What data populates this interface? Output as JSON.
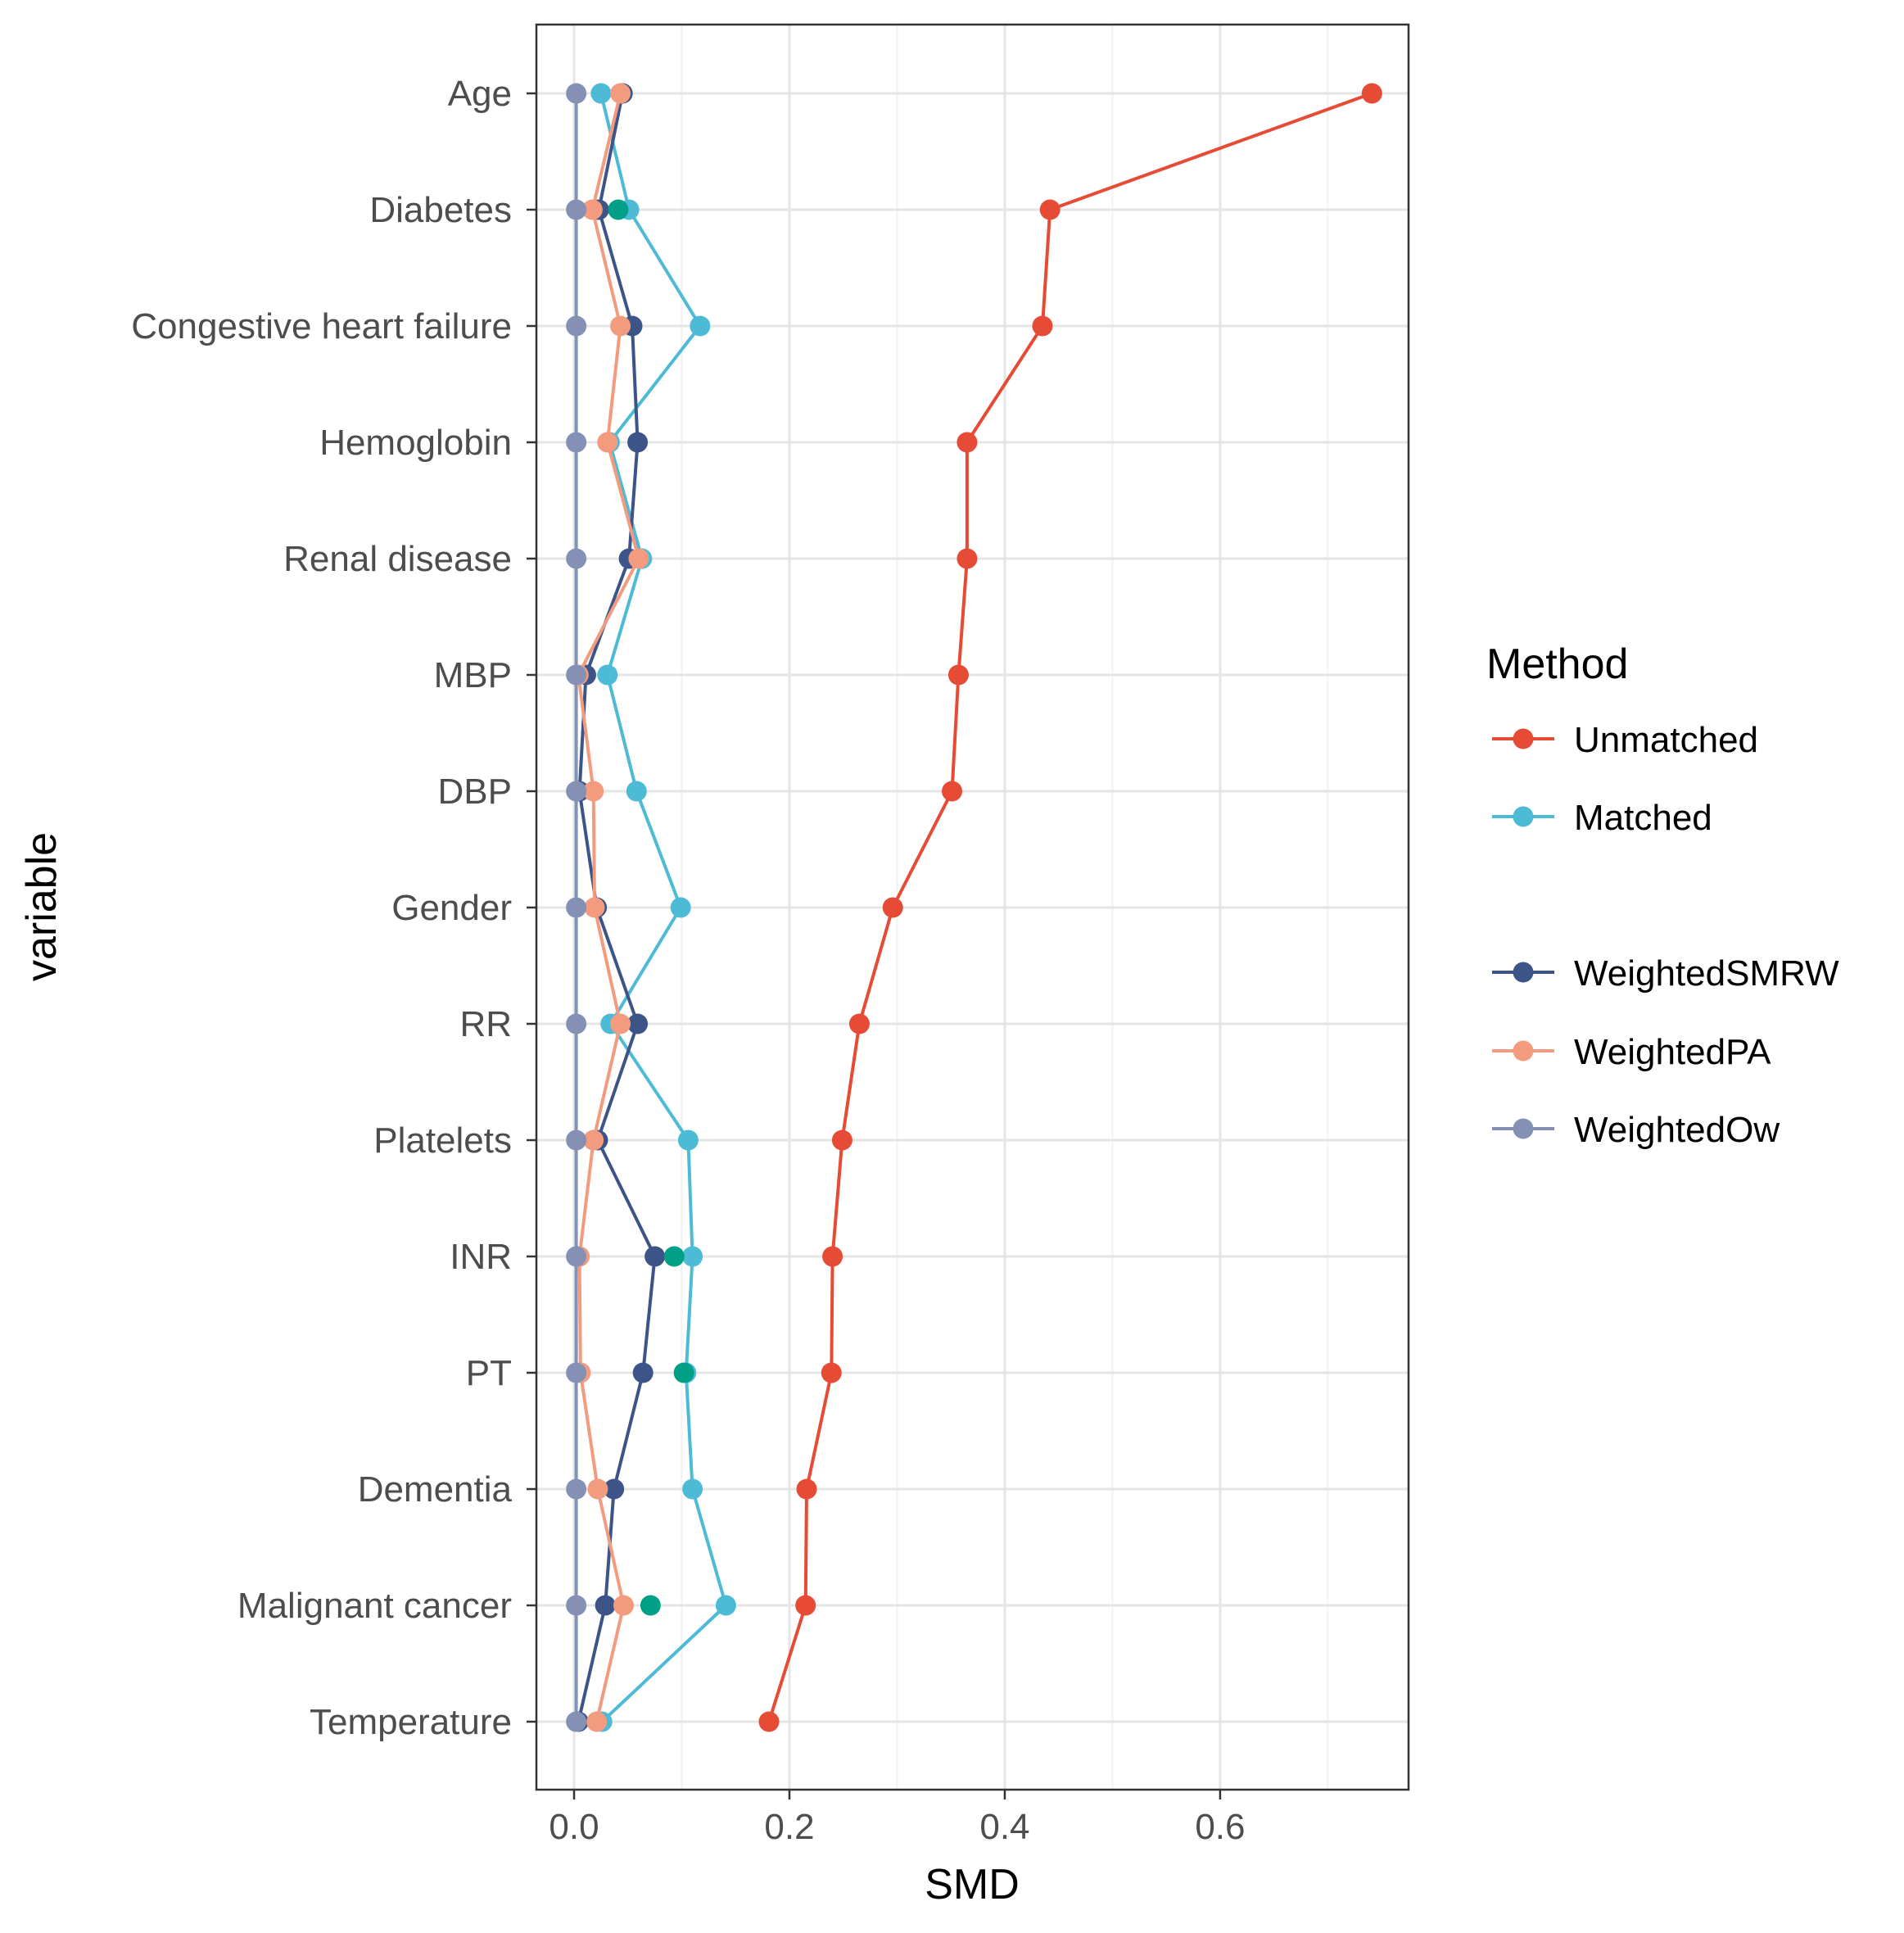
{
  "chart_data": {
    "type": "line",
    "orientation": "horizontal",
    "xlabel": "SMD",
    "ylabel": "variable",
    "xlim": [
      -0.035,
      0.775
    ],
    "xticks": [
      0.0,
      0.2,
      0.4,
      0.6
    ],
    "xtick_labels": [
      "0.0",
      "0.2",
      "0.4",
      "0.6"
    ],
    "grid": true,
    "categories": [
      "Age",
      "Diabetes",
      "Congestive heart failure",
      "Hemoglobin",
      "Renal disease ",
      "MBP",
      "DBP",
      "Gender",
      "RR",
      "Platelets",
      "INR",
      "PT",
      "Dementia",
      "Malignant cancer",
      "Temperature"
    ],
    "legend": {
      "title": "Method",
      "position": "right",
      "groups": [
        [
          "Unmatched",
          "Matched"
        ],
        [
          "WeightedSMRW",
          "WeightedPA",
          "WeightedOw"
        ]
      ]
    },
    "series": [
      {
        "name": "Unmatched",
        "color": "#E64B35",
        "values": [
          0.741,
          0.442,
          0.435,
          0.365,
          0.365,
          0.357,
          0.351,
          0.296,
          0.265,
          0.249,
          0.24,
          0.239,
          0.216,
          0.215,
          0.181
        ]
      },
      {
        "name": "Matched",
        "color": "#4DBBD5",
        "values": [
          0.025,
          0.051,
          0.117,
          0.033,
          0.063,
          0.031,
          0.058,
          0.099,
          0.034,
          0.106,
          0.11,
          0.104,
          0.11,
          0.141,
          0.026
        ]
      },
      {
        "name": "WeightedSMRW",
        "color": "#3C5488",
        "values": [
          0.045,
          0.023,
          0.054,
          0.059,
          0.051,
          0.011,
          0.005,
          0.021,
          0.059,
          0.022,
          0.075,
          0.064,
          0.037,
          0.029,
          0.004
        ]
      },
      {
        "name": "WeightedPA",
        "color": "#F39B7F",
        "values": [
          0.043,
          0.017,
          0.043,
          0.031,
          0.06,
          0.004,
          0.018,
          0.019,
          0.043,
          0.018,
          0.005,
          0.006,
          0.022,
          0.046,
          0.021
        ]
      },
      {
        "name": "WeightedOw",
        "color": "#8491B4",
        "values": [
          0.002,
          0.002,
          0.002,
          0.002,
          0.002,
          0.002,
          0.002,
          0.002,
          0.002,
          0.002,
          0.002,
          0.002,
          0.002,
          0.002,
          0.002
        ]
      }
    ],
    "extra_points": {
      "color": "#00A087",
      "points": [
        {
          "category": "Diabetes",
          "value": 0.041
        },
        {
          "category": "INR",
          "value": 0.093
        },
        {
          "category": "PT",
          "value": 0.102
        },
        {
          "category": "Malignant cancer",
          "value": 0.071
        }
      ]
    }
  }
}
